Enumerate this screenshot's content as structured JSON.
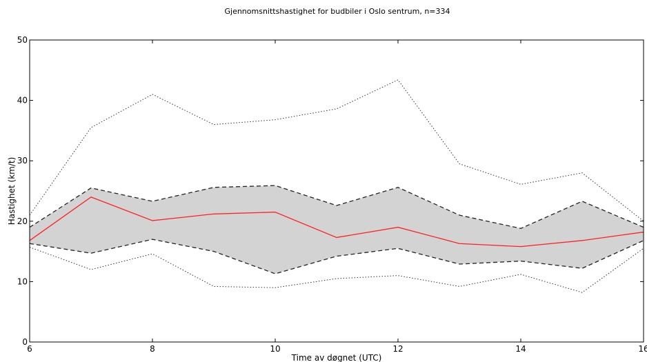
{
  "chart_data": {
    "type": "line",
    "title": "Gjennomsnittshastighet for budbiler i Oslo sentrum, n=334",
    "xlabel": "Time av døgnet (UTC)",
    "ylabel": "Hastighet (km/t)",
    "xlim": [
      6,
      16
    ],
    "ylim": [
      0,
      50
    ],
    "x_ticks": [
      6,
      8,
      10,
      12,
      14,
      16
    ],
    "y_ticks": [
      0,
      10,
      20,
      30,
      40,
      50
    ],
    "grid": false,
    "legend": "none",
    "x": [
      6,
      7,
      8,
      9,
      10,
      11,
      12,
      13,
      14,
      15,
      16
    ],
    "series": [
      {
        "role": "max",
        "style": "dotted",
        "color": "#333333",
        "values": [
          21.0,
          35.5,
          41.0,
          36.0,
          36.8,
          38.6,
          43.4,
          29.5,
          26.1,
          28.0,
          20.0
        ]
      },
      {
        "role": "upper_band",
        "style": "dashed",
        "color": "#222222",
        "values": [
          19.0,
          25.5,
          23.3,
          25.6,
          25.9,
          22.6,
          25.6,
          21.0,
          18.8,
          23.3,
          19.0
        ]
      },
      {
        "role": "mean",
        "style": "solid",
        "color": "#ff2020",
        "values": [
          16.8,
          24.0,
          20.1,
          21.2,
          21.5,
          17.3,
          19.0,
          16.3,
          15.8,
          16.8,
          18.2
        ]
      },
      {
        "role": "lower_band",
        "style": "dashed",
        "color": "#222222",
        "values": [
          16.3,
          14.7,
          17.0,
          15.0,
          11.3,
          14.2,
          15.5,
          12.9,
          13.4,
          12.2,
          16.8
        ]
      },
      {
        "role": "min",
        "style": "dotted",
        "color": "#333333",
        "values": [
          15.7,
          12.0,
          14.6,
          9.2,
          9.0,
          10.5,
          11.0,
          9.2,
          11.2,
          8.2,
          15.5
        ]
      }
    ],
    "band_fill": "#d3d3d3"
  }
}
